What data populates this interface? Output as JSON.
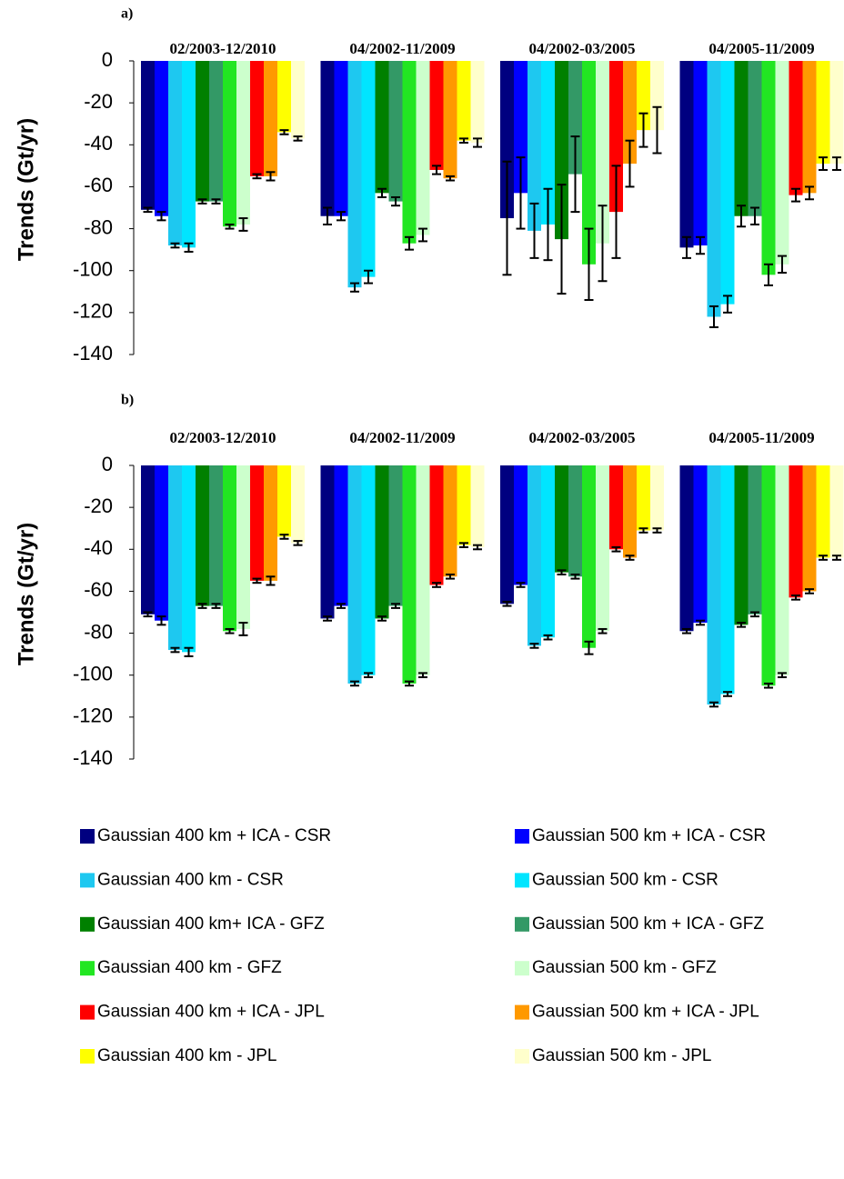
{
  "chart_data": [
    {
      "type": "bar",
      "title": "a)",
      "y_label": "Trends (Gt/yr)",
      "categories": [
        "02/2003-12/2010",
        "04/2002-11/2009",
        "04/2002-03/2005",
        "04/2005-11/2009"
      ],
      "ylim": [
        -140,
        0
      ],
      "yticks": [
        0,
        -20,
        -40,
        -60,
        -80,
        -100,
        -120,
        -140
      ],
      "series": [
        {
          "name": "Gaussian 400 km + ICA - CSR",
          "color": "#000080",
          "values": [
            -71,
            -74,
            -75,
            -89
          ],
          "errors": [
            1,
            4,
            27,
            5
          ]
        },
        {
          "name": "Gaussian 500 km + ICA - CSR",
          "color": "#0000ff",
          "values": [
            -74,
            -74,
            -63,
            -88
          ],
          "errors": [
            2,
            2,
            17,
            4
          ]
        },
        {
          "name": "Gaussian 400 km - CSR",
          "color": "#1ec8f0",
          "values": [
            -88,
            -108,
            -81,
            -122
          ],
          "errors": [
            1,
            2,
            13,
            5
          ]
        },
        {
          "name": "Gaussian 500 km - CSR",
          "color": "#00e5ff",
          "values": [
            -89,
            -103,
            -78,
            -116
          ],
          "errors": [
            2,
            3,
            17,
            4
          ]
        },
        {
          "name": "Gaussian 400 km+ ICA - GFZ",
          "color": "#008000",
          "values": [
            -67,
            -63,
            -85,
            -74
          ],
          "errors": [
            1,
            2,
            26,
            5
          ]
        },
        {
          "name": "Gaussian 500 km + ICA - GFZ",
          "color": "#339966",
          "values": [
            -67,
            -67,
            -54,
            -74
          ],
          "errors": [
            1,
            2,
            18,
            4
          ]
        },
        {
          "name": "Gaussian 400 km - GFZ",
          "color": "#22e622",
          "values": [
            -79,
            -87,
            -97,
            -102
          ],
          "errors": [
            1,
            3,
            17,
            5
          ]
        },
        {
          "name": "Gaussian 500 km - GFZ",
          "color": "#ccffcc",
          "values": [
            -78,
            -83,
            -87,
            -97
          ],
          "errors": [
            3,
            3,
            18,
            4
          ]
        },
        {
          "name": "Gaussian 400 km + ICA - JPL",
          "color": "#ff0000",
          "values": [
            -55,
            -52,
            -72,
            -64
          ],
          "errors": [
            1,
            2,
            22,
            3
          ]
        },
        {
          "name": "Gaussian 500 km + ICA - JPL",
          "color": "#ff9900",
          "values": [
            -55,
            -56,
            -49,
            -63
          ],
          "errors": [
            2,
            1,
            11,
            3
          ]
        },
        {
          "name": "Gaussian 400 km - JPL",
          "color": "#ffff00",
          "values": [
            -34,
            -38,
            -33,
            -49
          ],
          "errors": [
            1,
            1,
            8,
            3
          ]
        },
        {
          "name": "Gaussian 500 km - JPL",
          "color": "#ffffcc",
          "values": [
            -37,
            -39,
            -33,
            -49
          ],
          "errors": [
            1,
            2,
            11,
            3
          ]
        }
      ]
    },
    {
      "type": "bar",
      "title": "b)",
      "y_label": "Trends (Gt/yr)",
      "categories": [
        "02/2003-12/2010",
        "04/2002-11/2009",
        "04/2002-03/2005",
        "04/2005-11/2009"
      ],
      "ylim": [
        -140,
        0
      ],
      "yticks": [
        0,
        -20,
        -40,
        -60,
        -80,
        -100,
        -120,
        -140
      ],
      "series": [
        {
          "values": [
            -71,
            -73,
            -66,
            -79
          ],
          "errors": [
            1,
            1,
            1,
            1
          ]
        },
        {
          "values": [
            -74,
            -67,
            -57,
            -75
          ],
          "errors": [
            2,
            1,
            1,
            1
          ]
        },
        {
          "values": [
            -88,
            -104,
            -86,
            -114
          ],
          "errors": [
            1,
            1,
            1,
            1
          ]
        },
        {
          "values": [
            -89,
            -100,
            -82,
            -109
          ],
          "errors": [
            2,
            1,
            1,
            1
          ]
        },
        {
          "values": [
            -67,
            -73,
            -51,
            -76
          ],
          "errors": [
            1,
            1,
            1,
            1
          ]
        },
        {
          "values": [
            -67,
            -67,
            -53,
            -71
          ],
          "errors": [
            1,
            1,
            1,
            1
          ]
        },
        {
          "values": [
            -79,
            -104,
            -87,
            -105
          ],
          "errors": [
            1,
            1,
            3,
            1
          ]
        },
        {
          "values": [
            -78,
            -100,
            -79,
            -100
          ],
          "errors": [
            3,
            1,
            1,
            1
          ]
        },
        {
          "values": [
            -55,
            -57,
            -40,
            -63
          ],
          "errors": [
            1,
            1,
            1,
            1
          ]
        },
        {
          "values": [
            -55,
            -53,
            -44,
            -60
          ],
          "errors": [
            2,
            1,
            1,
            1
          ]
        },
        {
          "values": [
            -34,
            -38,
            -31,
            -44
          ],
          "errors": [
            1,
            1,
            1,
            1
          ]
        },
        {
          "values": [
            -37,
            -39,
            -31,
            -44
          ],
          "errors": [
            1,
            1,
            1,
            1
          ]
        }
      ]
    }
  ]
}
